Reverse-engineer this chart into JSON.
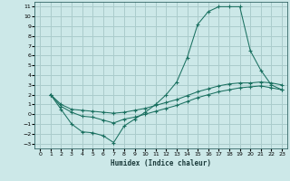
{
  "xlabel": "Humidex (Indice chaleur)",
  "bg_color": "#cce8e8",
  "grid_color": "#aacccc",
  "line_color": "#1a7060",
  "xlim": [
    -0.5,
    23.5
  ],
  "ylim": [
    -3.5,
    11.5
  ],
  "xticks": [
    0,
    1,
    2,
    3,
    4,
    5,
    6,
    7,
    8,
    9,
    10,
    11,
    12,
    13,
    14,
    15,
    16,
    17,
    18,
    19,
    20,
    21,
    22,
    23
  ],
  "yticks": [
    -3,
    -2,
    -1,
    0,
    1,
    2,
    3,
    4,
    5,
    6,
    7,
    8,
    9,
    10,
    11
  ],
  "line_big_x": [
    1,
    2,
    3,
    4,
    5,
    6,
    7,
    8,
    9,
    10,
    11,
    12,
    13,
    14,
    15,
    16,
    17,
    18,
    19,
    20,
    21,
    22,
    23
  ],
  "line_big_y": [
    2,
    0.5,
    -1,
    -1.8,
    -1.9,
    -2.2,
    -2.9,
    -1.2,
    -0.5,
    0.2,
    1.0,
    2.0,
    3.3,
    5.8,
    9.2,
    10.5,
    11.0,
    11.0,
    11.0,
    6.5,
    4.5,
    3.0,
    2.5
  ],
  "line_mid_x": [
    1,
    2,
    3,
    4,
    5,
    6,
    7,
    8,
    9,
    10,
    11,
    12,
    13,
    14,
    15,
    16,
    17,
    18,
    19,
    20,
    21,
    22,
    23
  ],
  "line_mid_y": [
    2,
    1.0,
    0.5,
    0.4,
    0.3,
    0.2,
    0.1,
    0.2,
    0.4,
    0.6,
    0.9,
    1.2,
    1.5,
    1.9,
    2.3,
    2.6,
    2.9,
    3.1,
    3.2,
    3.2,
    3.3,
    3.2,
    3.0
  ],
  "line_low_x": [
    1,
    2,
    3,
    4,
    5,
    6,
    7,
    8,
    9,
    10,
    11,
    12,
    13,
    14,
    15,
    16,
    17,
    18,
    19,
    20,
    21,
    22,
    23
  ],
  "line_low_y": [
    2,
    0.8,
    0.2,
    -0.2,
    -0.3,
    -0.6,
    -0.9,
    -0.5,
    -0.3,
    0.0,
    0.3,
    0.6,
    0.9,
    1.3,
    1.7,
    2.0,
    2.3,
    2.5,
    2.7,
    2.8,
    2.9,
    2.7,
    2.5
  ]
}
